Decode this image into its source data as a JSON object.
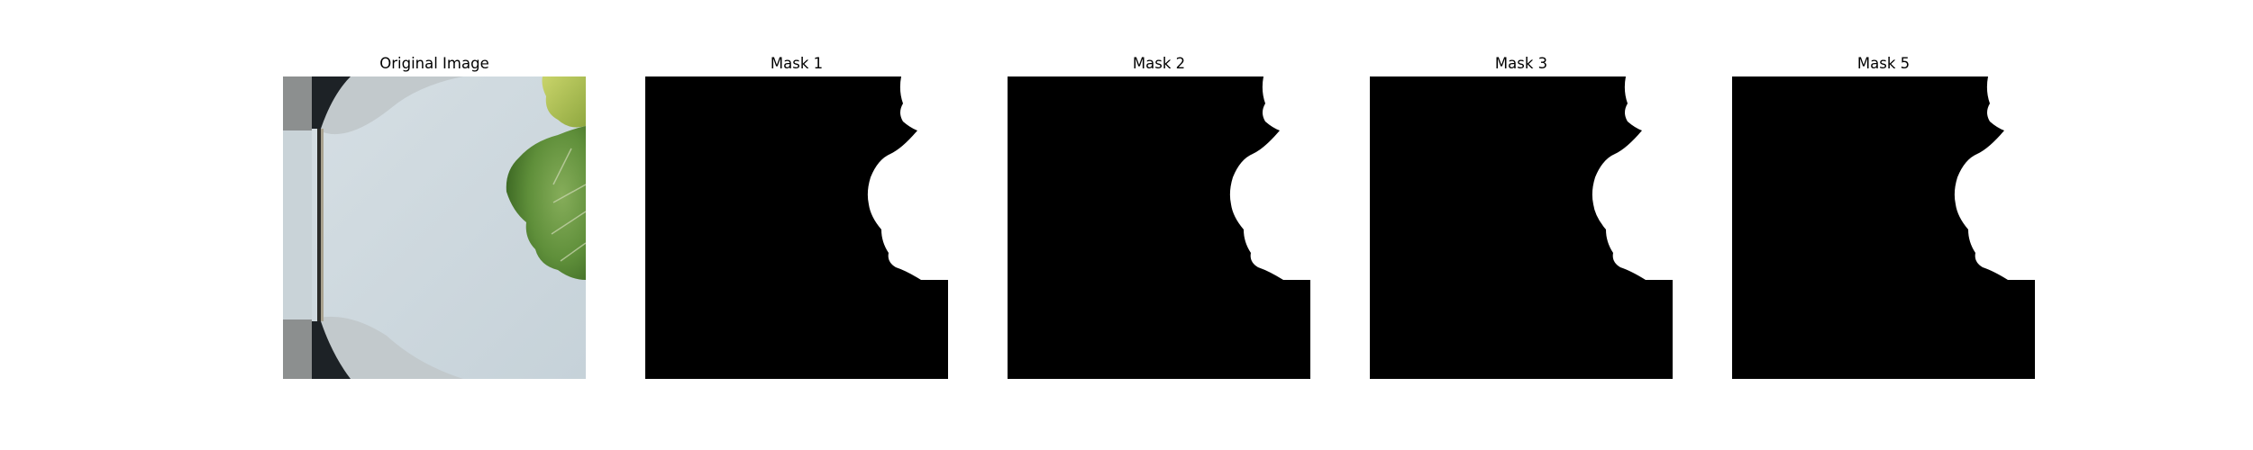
{
  "figure": {
    "panels": [
      {
        "title": "Original Image"
      },
      {
        "title": "Mask 1"
      },
      {
        "title": "Mask 2"
      },
      {
        "title": "Mask 3"
      },
      {
        "title": "Mask 5"
      }
    ]
  },
  "colors": {
    "mask_foreground": "#000000",
    "mask_background": "#ffffff",
    "surface": "#cdd8de",
    "leaf": "#5f8f3a",
    "dark_edge": "#1f2326"
  }
}
